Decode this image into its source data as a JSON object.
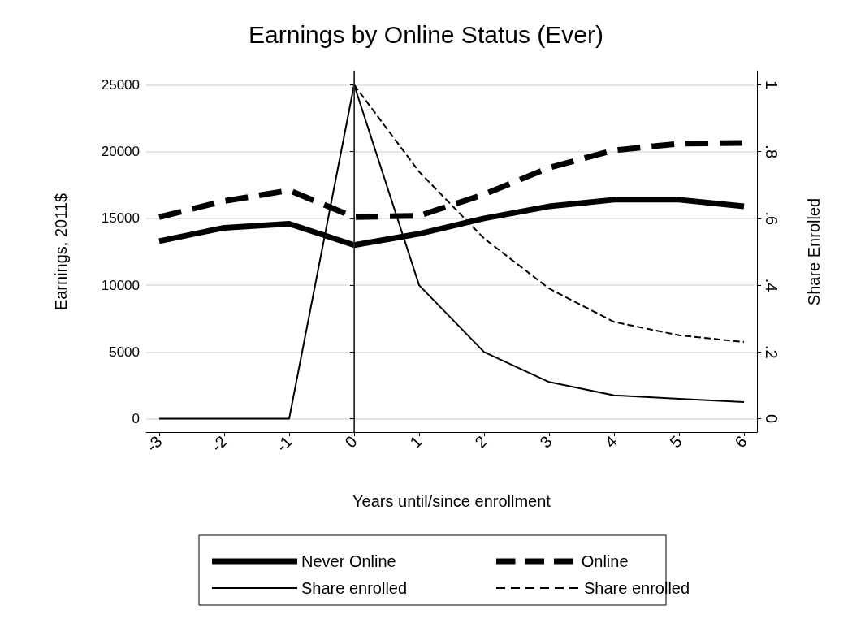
{
  "chart_data": {
    "type": "line",
    "title": "Earnings by Online Status (Ever)",
    "xlabel": "Years until/since enrollment",
    "ylabel": "Earnings, 2011$",
    "y2label": "Share Enrolled",
    "x": [
      -3,
      -2,
      -1,
      0,
      1,
      2,
      3,
      4,
      5,
      6
    ],
    "series": [
      {
        "name": "Never Online",
        "color": "#000000",
        "line_style": "solid",
        "values": [
          13300,
          14300,
          14600,
          13000,
          13850,
          15000,
          15900,
          16400,
          16400,
          15900
        ]
      },
      {
        "name": "Online",
        "color": "#000000",
        "line_style": "dashed",
        "values": [
          15100,
          16300,
          17100,
          15100,
          15200,
          16800,
          18800,
          20100,
          20600,
          20650
        ]
      },
      {
        "name": "Share enrolled",
        "color": "#000000",
        "line_style": "solid",
        "axis": "y2",
        "values": [
          0,
          0,
          0,
          1,
          0.4,
          0.2,
          0.11,
          0.07,
          0.06,
          0.05
        ]
      },
      {
        "name": "Share enrolled",
        "color": "#000000",
        "line_style": "dashed",
        "axis": "y2",
        "values": [
          null,
          null,
          null,
          1,
          0.74,
          0.54,
          0.39,
          0.29,
          0.25,
          0.23
        ]
      }
    ],
    "xlim": [
      -3.2,
      6.2
    ],
    "xticks": [
      -3,
      -2,
      -1,
      0,
      1,
      2,
      3,
      4,
      5,
      6
    ],
    "ylim": [
      -1000,
      26000
    ],
    "yticks": [
      0,
      5000,
      10000,
      15000,
      20000,
      25000
    ],
    "y2lim": [
      -0.04,
      1.04
    ],
    "y2ticks": [
      {
        "value": 0,
        "label": "0"
      },
      {
        "value": 0.2,
        "label": ".2"
      },
      {
        "value": 0.4,
        "label": ".4"
      },
      {
        "value": 0.6,
        "label": ".6"
      },
      {
        "value": 0.8,
        "label": ".8"
      },
      {
        "value": 1,
        "label": "1"
      }
    ],
    "ref_lines": [
      {
        "axis": "x",
        "value": 0,
        "color": "#333333"
      }
    ],
    "grid": "y",
    "legend": "bottom",
    "marker": "none"
  }
}
